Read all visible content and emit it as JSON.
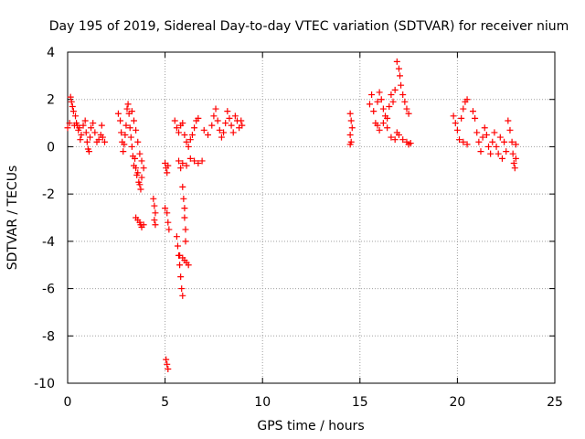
{
  "chart_data": {
    "type": "scatter",
    "title": "Day 195 of 2019, Sidereal Day-to-day VTEC variation (SDTVAR) for receiver nium",
    "xlabel": "GPS time / hours",
    "ylabel": "SDTVAR / TECUs",
    "xlim": [
      0,
      25
    ],
    "ylim": [
      -10,
      4
    ],
    "xticks": [
      0,
      5,
      10,
      15,
      20,
      25
    ],
    "yticks": [
      4,
      2,
      0,
      -2,
      -4,
      -6,
      -8,
      -10
    ],
    "grid": true,
    "marker": "+",
    "color": "#ff0000",
    "series": [
      {
        "name": "SDTVAR",
        "points": [
          [
            0.0,
            0.8
          ],
          [
            0.1,
            1.0
          ],
          [
            0.15,
            2.1
          ],
          [
            0.2,
            1.9
          ],
          [
            0.25,
            1.7
          ],
          [
            0.3,
            1.5
          ],
          [
            0.35,
            0.9
          ],
          [
            0.4,
            1.3
          ],
          [
            0.45,
            1.0
          ],
          [
            0.5,
            0.9
          ],
          [
            0.55,
            0.7
          ],
          [
            0.6,
            0.8
          ],
          [
            0.65,
            0.3
          ],
          [
            0.7,
            0.5
          ],
          [
            0.8,
            0.9
          ],
          [
            0.9,
            1.1
          ],
          [
            0.95,
            0.6
          ],
          [
            1.0,
            0.2
          ],
          [
            1.05,
            -0.1
          ],
          [
            1.1,
            -0.2
          ],
          [
            1.15,
            0.4
          ],
          [
            1.2,
            0.8
          ],
          [
            1.3,
            1.0
          ],
          [
            1.4,
            0.6
          ],
          [
            1.5,
            0.2
          ],
          [
            1.6,
            0.3
          ],
          [
            1.7,
            0.5
          ],
          [
            1.75,
            0.9
          ],
          [
            1.8,
            0.4
          ],
          [
            1.9,
            0.2
          ],
          [
            2.6,
            1.4
          ],
          [
            2.7,
            1.1
          ],
          [
            2.75,
            0.6
          ],
          [
            2.8,
            0.2
          ],
          [
            2.85,
            -0.2
          ],
          [
            2.9,
            0.1
          ],
          [
            2.95,
            0.5
          ],
          [
            3.0,
            0.9
          ],
          [
            3.05,
            1.6
          ],
          [
            3.1,
            1.8
          ],
          [
            3.15,
            1.4
          ],
          [
            3.2,
            0.8
          ],
          [
            3.25,
            0.4
          ],
          [
            3.3,
            0.0
          ],
          [
            3.35,
            -0.4
          ],
          [
            3.4,
            -0.8
          ],
          [
            3.45,
            -0.5
          ],
          [
            3.5,
            -0.9
          ],
          [
            3.55,
            -1.2
          ],
          [
            3.6,
            -1.1
          ],
          [
            3.65,
            -1.5
          ],
          [
            3.7,
            -1.6
          ],
          [
            3.75,
            -1.8
          ],
          [
            3.8,
            -1.3
          ],
          [
            3.9,
            -0.9
          ],
          [
            3.3,
            1.5
          ],
          [
            3.4,
            1.1
          ],
          [
            3.5,
            0.7
          ],
          [
            3.6,
            0.2
          ],
          [
            3.7,
            -0.3
          ],
          [
            3.8,
            -0.6
          ],
          [
            3.5,
            -3.0
          ],
          [
            3.6,
            -3.1
          ],
          [
            3.7,
            -3.2
          ],
          [
            3.75,
            -3.3
          ],
          [
            3.8,
            -3.4
          ],
          [
            3.9,
            -3.3
          ],
          [
            4.4,
            -2.2
          ],
          [
            4.45,
            -2.5
          ],
          [
            4.5,
            -2.8
          ],
          [
            4.45,
            -3.1
          ],
          [
            4.5,
            -3.3
          ],
          [
            5.0,
            -0.7
          ],
          [
            5.05,
            -0.9
          ],
          [
            5.1,
            -1.1
          ],
          [
            5.15,
            -0.8
          ],
          [
            5.0,
            -2.6
          ],
          [
            5.1,
            -2.8
          ],
          [
            5.15,
            -3.2
          ],
          [
            5.2,
            -3.5
          ],
          [
            5.05,
            -9.0
          ],
          [
            5.1,
            -9.2
          ],
          [
            5.15,
            -9.4
          ],
          [
            5.6,
            -3.8
          ],
          [
            5.65,
            -4.2
          ],
          [
            5.7,
            -4.6
          ],
          [
            5.75,
            -5.0
          ],
          [
            5.8,
            -5.5
          ],
          [
            5.85,
            -6.0
          ],
          [
            5.9,
            -6.3
          ],
          [
            5.75,
            -4.6
          ],
          [
            5.9,
            -4.7
          ],
          [
            6.0,
            -4.8
          ],
          [
            6.1,
            -4.9
          ],
          [
            6.2,
            -5.0
          ],
          [
            5.9,
            -1.7
          ],
          [
            5.95,
            -2.2
          ],
          [
            6.0,
            -2.6
          ],
          [
            6.0,
            -3.0
          ],
          [
            6.05,
            -3.5
          ],
          [
            6.05,
            -4.0
          ],
          [
            5.5,
            1.1
          ],
          [
            5.6,
            0.8
          ],
          [
            5.7,
            0.6
          ],
          [
            5.8,
            0.9
          ],
          [
            5.9,
            1.0
          ],
          [
            6.0,
            0.5
          ],
          [
            6.1,
            0.2
          ],
          [
            6.2,
            0.0
          ],
          [
            6.3,
            0.3
          ],
          [
            6.4,
            0.5
          ],
          [
            6.5,
            0.8
          ],
          [
            6.6,
            1.1
          ],
          [
            6.7,
            1.2
          ],
          [
            5.7,
            -0.6
          ],
          [
            5.8,
            -0.9
          ],
          [
            5.9,
            -0.7
          ],
          [
            6.1,
            -0.8
          ],
          [
            6.3,
            -0.5
          ],
          [
            6.5,
            -0.6
          ],
          [
            6.7,
            -0.7
          ],
          [
            6.9,
            -0.6
          ],
          [
            7.0,
            0.7
          ],
          [
            7.2,
            0.5
          ],
          [
            7.4,
            0.9
          ],
          [
            7.5,
            1.3
          ],
          [
            7.6,
            1.6
          ],
          [
            7.7,
            1.1
          ],
          [
            7.8,
            0.7
          ],
          [
            7.9,
            0.4
          ],
          [
            8.0,
            0.6
          ],
          [
            8.1,
            1.0
          ],
          [
            8.2,
            1.5
          ],
          [
            8.3,
            1.2
          ],
          [
            8.4,
            0.9
          ],
          [
            8.5,
            0.6
          ],
          [
            8.6,
            1.3
          ],
          [
            8.7,
            1.1
          ],
          [
            8.8,
            0.8
          ],
          [
            8.9,
            1.1
          ],
          [
            8.95,
            0.9
          ],
          [
            14.5,
            1.4
          ],
          [
            14.55,
            1.1
          ],
          [
            14.6,
            0.8
          ],
          [
            14.5,
            0.5
          ],
          [
            14.55,
            0.2
          ],
          [
            14.5,
            0.1
          ],
          [
            15.5,
            1.8
          ],
          [
            15.6,
            2.2
          ],
          [
            15.7,
            1.5
          ],
          [
            15.8,
            1.0
          ],
          [
            15.9,
            1.9
          ],
          [
            16.0,
            2.3
          ],
          [
            16.1,
            2.0
          ],
          [
            16.2,
            1.6
          ],
          [
            16.3,
            1.3
          ],
          [
            16.4,
            1.2
          ],
          [
            16.5,
            1.7
          ],
          [
            16.6,
            2.2
          ],
          [
            16.7,
            1.9
          ],
          [
            16.8,
            2.4
          ],
          [
            15.9,
            0.9
          ],
          [
            16.0,
            0.7
          ],
          [
            16.2,
            1.0
          ],
          [
            16.4,
            0.8
          ],
          [
            16.6,
            0.4
          ],
          [
            16.8,
            0.3
          ],
          [
            16.9,
            0.6
          ],
          [
            17.0,
            0.5
          ],
          [
            17.2,
            0.3
          ],
          [
            17.4,
            0.2
          ],
          [
            17.5,
            0.1
          ],
          [
            17.6,
            0.15
          ],
          [
            16.9,
            3.6
          ],
          [
            17.0,
            3.3
          ],
          [
            17.05,
            3.0
          ],
          [
            17.1,
            2.6
          ],
          [
            17.2,
            2.2
          ],
          [
            17.3,
            1.9
          ],
          [
            17.4,
            1.6
          ],
          [
            17.5,
            1.4
          ],
          [
            19.8,
            1.3
          ],
          [
            19.9,
            1.0
          ],
          [
            20.0,
            0.7
          ],
          [
            20.1,
            0.3
          ],
          [
            20.2,
            1.2
          ],
          [
            20.3,
            1.6
          ],
          [
            20.4,
            1.9
          ],
          [
            20.5,
            2.0
          ],
          [
            20.3,
            0.2
          ],
          [
            20.5,
            0.1
          ],
          [
            20.8,
            1.5
          ],
          [
            20.9,
            1.2
          ],
          [
            21.0,
            0.6
          ],
          [
            21.1,
            0.2
          ],
          [
            21.2,
            -0.2
          ],
          [
            21.3,
            0.4
          ],
          [
            21.4,
            0.8
          ],
          [
            21.5,
            0.5
          ],
          [
            21.6,
            0.0
          ],
          [
            21.7,
            -0.3
          ],
          [
            21.8,
            0.2
          ],
          [
            21.9,
            0.6
          ],
          [
            22.0,
            0.0
          ],
          [
            22.1,
            -0.3
          ],
          [
            22.2,
            0.4
          ],
          [
            22.3,
            -0.5
          ],
          [
            22.4,
            0.2
          ],
          [
            22.5,
            -0.2
          ],
          [
            22.6,
            1.1
          ],
          [
            22.7,
            0.7
          ],
          [
            22.8,
            0.2
          ],
          [
            22.85,
            -0.3
          ],
          [
            22.9,
            -0.7
          ],
          [
            22.95,
            -0.9
          ],
          [
            23.0,
            0.1
          ],
          [
            23.0,
            -0.5
          ]
        ]
      }
    ]
  }
}
